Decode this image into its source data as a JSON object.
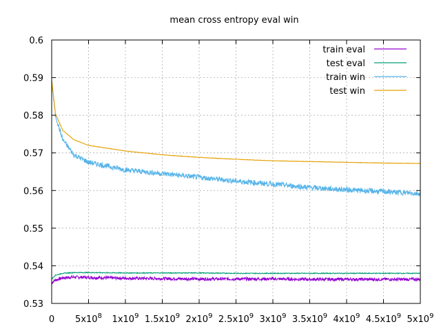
{
  "chart_data": {
    "type": "line",
    "title": "mean cross entropy eval win",
    "xlabel": "",
    "ylabel": "",
    "xlim": [
      0,
      5000000000
    ],
    "ylim": [
      0.53,
      0.6
    ],
    "grid": true,
    "legend_position": "top-right",
    "x_ticks": [
      {
        "value": 0,
        "label": "0"
      },
      {
        "value": 500000000,
        "label": "5x10"
      },
      {
        "value": 1000000000,
        "label": "1x10"
      },
      {
        "value": 1500000000,
        "label": "1.5x10"
      },
      {
        "value": 2000000000,
        "label": "2x10"
      },
      {
        "value": 2500000000,
        "label": "2.5x10"
      },
      {
        "value": 3000000000,
        "label": "3x10"
      },
      {
        "value": 3500000000,
        "label": "3.5x10"
      },
      {
        "value": 4000000000,
        "label": "4x10"
      },
      {
        "value": 4500000000,
        "label": "4.5x10"
      },
      {
        "value": 5000000000,
        "label": "5x10"
      }
    ],
    "x_tick_exponents": [
      "8",
      "9",
      "9",
      "9",
      "9",
      "9",
      "9",
      "9",
      "9",
      "9"
    ],
    "y_ticks": [
      {
        "value": 0.53,
        "label": "0.53"
      },
      {
        "value": 0.54,
        "label": "0.54"
      },
      {
        "value": 0.55,
        "label": "0.55"
      },
      {
        "value": 0.56,
        "label": "0.56"
      },
      {
        "value": 0.57,
        "label": "0.57"
      },
      {
        "value": 0.58,
        "label": "0.58"
      },
      {
        "value": 0.59,
        "label": "0.59"
      },
      {
        "value": 0.6,
        "label": "0.6"
      }
    ],
    "x": [
      0,
      50000000,
      150000000,
      300000000,
      500000000,
      1000000000,
      1500000000,
      2000000000,
      2500000000,
      3000000000,
      3500000000,
      4000000000,
      4500000000,
      5000000000
    ],
    "series": [
      {
        "name": "train eval",
        "color": "#9400d3",
        "noise": 0.0004,
        "values": [
          0.5355,
          0.5362,
          0.5368,
          0.537,
          0.5369,
          0.5367,
          0.5366,
          0.5365,
          0.5365,
          0.5365,
          0.5364,
          0.5364,
          0.5364,
          0.5364
        ]
      },
      {
        "name": "test eval",
        "color": "#009e73",
        "noise": 0.0001,
        "values": [
          0.5365,
          0.5375,
          0.538,
          0.5382,
          0.5382,
          0.5381,
          0.5381,
          0.5381,
          0.538,
          0.538,
          0.538,
          0.538,
          0.538,
          0.538
        ]
      },
      {
        "name": "train win",
        "color": "#56b4e9",
        "noise": 0.0007,
        "values": [
          0.589,
          0.58,
          0.5735,
          0.5695,
          0.5675,
          0.5655,
          0.5645,
          0.5635,
          0.5625,
          0.5617,
          0.5608,
          0.5602,
          0.5597,
          0.5592
        ]
      },
      {
        "name": "test win",
        "color": "#e69f00",
        "noise": 5e-05,
        "values": [
          0.5895,
          0.5805,
          0.576,
          0.5735,
          0.572,
          0.5705,
          0.5695,
          0.5688,
          0.5683,
          0.5679,
          0.5677,
          0.5675,
          0.5673,
          0.5672
        ]
      }
    ]
  }
}
